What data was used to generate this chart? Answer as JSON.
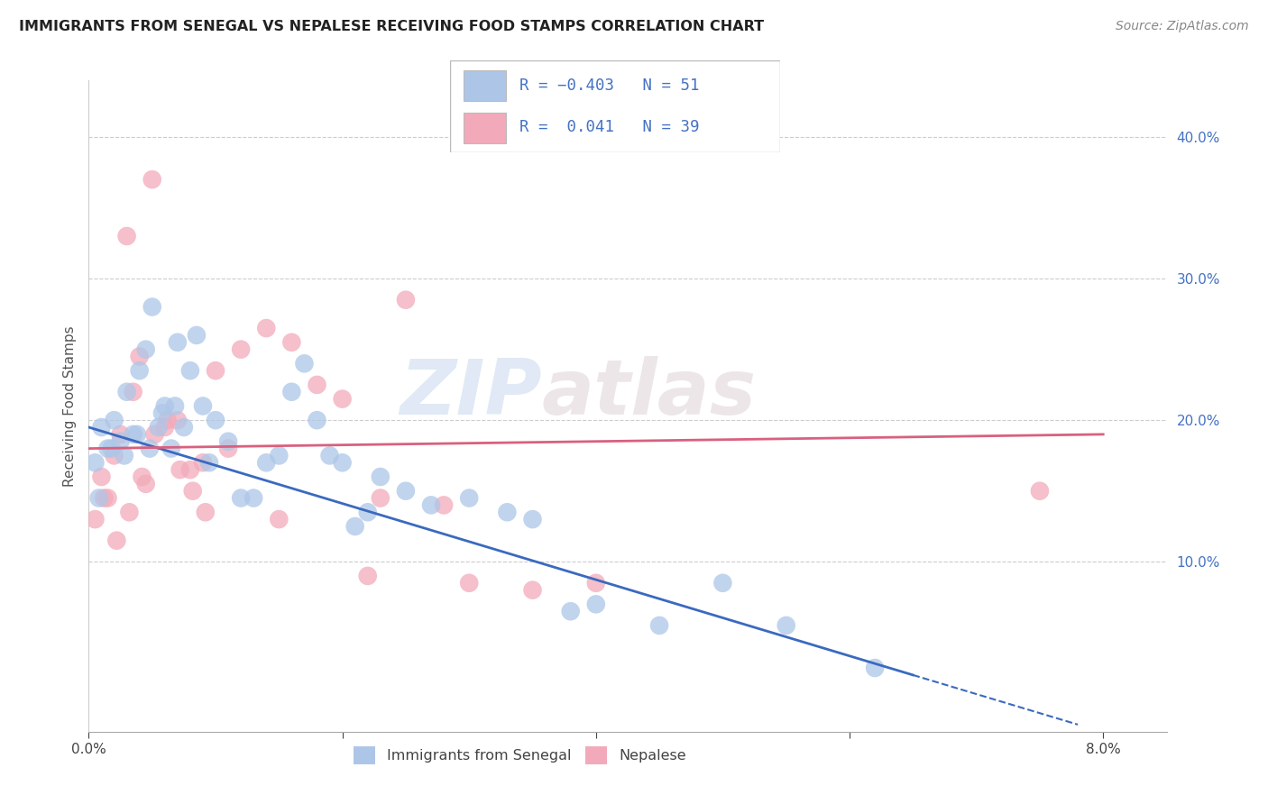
{
  "title": "IMMIGRANTS FROM SENEGAL VS NEPALESE RECEIVING FOOD STAMPS CORRELATION CHART",
  "source": "Source: ZipAtlas.com",
  "ylabel": "Receiving Food Stamps",
  "xlim": [
    0.0,
    8.5
  ],
  "ylim": [
    -2,
    44
  ],
  "y_ticks_right": [
    10.0,
    20.0,
    30.0,
    40.0
  ],
  "y_tick_labels_right": [
    "10.0%",
    "20.0%",
    "30.0%",
    "40.0%"
  ],
  "series1_color": "#adc6e8",
  "series2_color": "#f2aaba",
  "line1_color": "#3a6abf",
  "line2_color": "#d9607e",
  "watermark_zip": "ZIP",
  "watermark_atlas": "atlas",
  "legend_label1": "Immigrants from Senegal",
  "legend_label2": "Nepalese",
  "blue_scatter_x": [
    0.05,
    0.1,
    0.15,
    0.2,
    0.25,
    0.3,
    0.35,
    0.4,
    0.45,
    0.5,
    0.55,
    0.6,
    0.65,
    0.7,
    0.75,
    0.8,
    0.85,
    0.9,
    0.95,
    1.0,
    1.1,
    1.2,
    1.3,
    1.4,
    1.5,
    1.6,
    1.7,
    1.8,
    1.9,
    2.0,
    2.1,
    2.2,
    2.3,
    2.5,
    2.7,
    3.0,
    3.3,
    3.5,
    3.8,
    4.0,
    4.5,
    5.0,
    5.5,
    6.2,
    0.08,
    0.18,
    0.28,
    0.38,
    0.48,
    0.58,
    0.68
  ],
  "blue_scatter_y": [
    17.0,
    19.5,
    18.0,
    20.0,
    18.5,
    22.0,
    19.0,
    23.5,
    25.0,
    28.0,
    19.5,
    21.0,
    18.0,
    25.5,
    19.5,
    23.5,
    26.0,
    21.0,
    17.0,
    20.0,
    18.5,
    14.5,
    14.5,
    17.0,
    17.5,
    22.0,
    24.0,
    20.0,
    17.5,
    17.0,
    12.5,
    13.5,
    16.0,
    15.0,
    14.0,
    14.5,
    13.5,
    13.0,
    6.5,
    7.0,
    5.5,
    8.5,
    5.5,
    2.5,
    14.5,
    18.0,
    17.5,
    19.0,
    18.0,
    20.5,
    21.0
  ],
  "pink_scatter_x": [
    0.05,
    0.1,
    0.15,
    0.2,
    0.25,
    0.3,
    0.35,
    0.4,
    0.45,
    0.5,
    0.6,
    0.7,
    0.8,
    0.9,
    1.0,
    1.1,
    1.2,
    1.4,
    1.6,
    1.8,
    2.0,
    2.2,
    2.5,
    2.8,
    3.0,
    3.5,
    4.0,
    0.12,
    0.22,
    0.32,
    0.42,
    0.52,
    0.62,
    0.72,
    0.82,
    0.92,
    1.5,
    2.3,
    7.5
  ],
  "pink_scatter_y": [
    13.0,
    16.0,
    14.5,
    17.5,
    19.0,
    33.0,
    22.0,
    24.5,
    15.5,
    37.0,
    19.5,
    20.0,
    16.5,
    17.0,
    23.5,
    18.0,
    25.0,
    26.5,
    25.5,
    22.5,
    21.5,
    9.0,
    28.5,
    14.0,
    8.5,
    8.0,
    8.5,
    14.5,
    11.5,
    13.5,
    16.0,
    19.0,
    20.0,
    16.5,
    15.0,
    13.5,
    13.0,
    14.5,
    15.0
  ],
  "blue_line_x0": 0.0,
  "blue_line_y0": 19.5,
  "blue_line_x1": 6.5,
  "blue_line_y1": 2.0,
  "blue_dash_x0": 6.5,
  "blue_dash_y0": 2.0,
  "blue_dash_x1": 7.8,
  "blue_dash_y1": -1.5,
  "pink_line_x0": 0.0,
  "pink_line_y0": 18.0,
  "pink_line_x1": 8.0,
  "pink_line_y1": 19.0
}
